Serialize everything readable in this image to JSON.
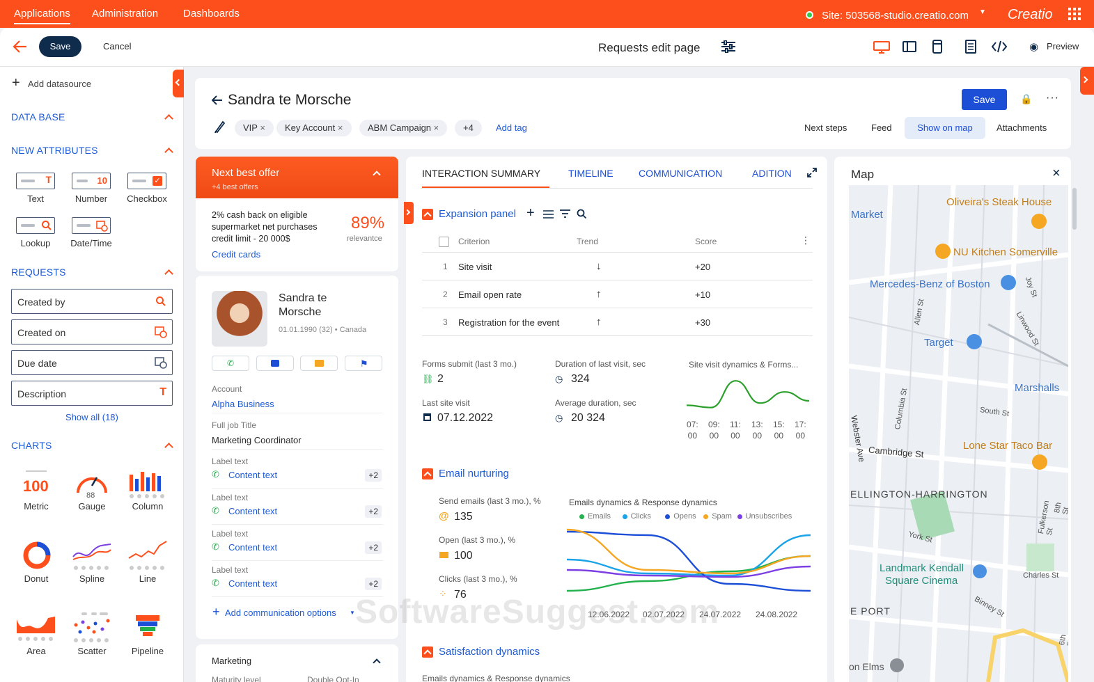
{
  "topnav": {
    "items": [
      "Applications",
      "Administration",
      "Dashboards"
    ],
    "site": "Site: 503568-studio.creatio.com",
    "logo": "Creatio"
  },
  "toolbar": {
    "save": "Save",
    "cancel": "Cancel",
    "page_title": "Requests edit page",
    "preview": "Preview"
  },
  "left": {
    "add_datasource": "Add datasource",
    "data_base": "DATA BASE",
    "new_attributes": "NEW ATTRIBUTES",
    "attrs": [
      "Text",
      "Number",
      "Checkbox",
      "Lookup",
      "Date/Time"
    ],
    "attr_number_glyph": "10",
    "requests": "REQUESTS",
    "fields": [
      "Created by",
      "Created on",
      "Due date",
      "Description"
    ],
    "show_all": "Show all (18)",
    "charts": "CHARTS",
    "chart_tiles": [
      "Metric",
      "Gauge",
      "Column",
      "Donut",
      "Spline",
      "Line",
      "Area",
      "Scatter",
      "Pipeline"
    ],
    "metric_value": "100",
    "gauge_value": "88"
  },
  "record": {
    "name": "Sandra te Morsche",
    "save": "Save",
    "tags": [
      "VIP",
      "Key Account",
      "ABM Campaign",
      "+4"
    ],
    "add_tag": "Add tag",
    "actions": [
      "Next steps",
      "Feed",
      "Show on map",
      "Attachments"
    ]
  },
  "offer": {
    "title": "Next best offer",
    "subtitle": "+4 best offers",
    "text": "2% cash back on eligible supermarket net purchases credit limit - 20 000$",
    "percent": "89%",
    "percent_label": "relevantce",
    "link": "Credit cards"
  },
  "contact": {
    "name_line1": "Sandra te",
    "name_line2": "Morsche",
    "meta": "01.01.1990 (32) • Canada",
    "account_label": "Account",
    "account_value": "Alpha Business",
    "job_label": "Full job Title",
    "job_value": "Marketing Coordinator",
    "rows": [
      {
        "label": "Label text",
        "value": "Content text",
        "badge": "+2"
      },
      {
        "label": "Label text",
        "value": "Content text",
        "badge": "+2"
      },
      {
        "label": "Label text",
        "value": "Content text",
        "badge": "+2"
      },
      {
        "label": "Label text",
        "value": "Content text",
        "badge": "+2"
      }
    ],
    "add_comm": "Add communication options",
    "marketing": "Marketing",
    "marketing_sub1": "Maturity level",
    "marketing_sub2": "Double Opt-In"
  },
  "tabs": [
    "INTERACTION SUMMARY",
    "TIMELINE",
    "COMMUNICATION",
    "ADITION"
  ],
  "expansion": {
    "title": "Expansion panel",
    "headers": [
      "Criterion",
      "Trend",
      "Score"
    ],
    "rows": [
      {
        "n": "1",
        "criterion": "Site visit",
        "trend": "↓",
        "score": "+20"
      },
      {
        "n": "2",
        "criterion": "Email open rate",
        "trend": "↑",
        "score": "+10"
      },
      {
        "n": "3",
        "criterion": "Registration for the event",
        "trend": "↑",
        "score": "+30"
      }
    ]
  },
  "metrics": {
    "forms_label": "Forms submit (last 3 mo.)",
    "forms_value": "2",
    "duration_label": "Duration of last visit, sec",
    "duration_value": "324",
    "last_visit_label": "Last site visit",
    "last_visit_value": "07.12.2022",
    "avg_label": "Average duration, sec",
    "avg_value": "20 324"
  },
  "site_chart": {
    "title": "Site visit dynamics & Forms...",
    "ticks_top": [
      "07:",
      "09:",
      "11:",
      "13:",
      "15:",
      "17:"
    ],
    "ticks_bottom": [
      "00",
      "00",
      "00",
      "00",
      "00",
      "00"
    ]
  },
  "email": {
    "title": "Email nurturing",
    "send_label": "Send emails (last 3 mo.), %",
    "send_value": "135",
    "open_label": "Open (last 3 mo.), %",
    "open_value": "100",
    "clicks_label": "Clicks (last 3 mo.), %",
    "clicks_value": "76",
    "chart_title": "Emails dynamics & Response dynamics"
  },
  "satisfaction": {
    "title": "Satisfaction dynamics",
    "sub": "Emails dynamics & Response dynamics"
  },
  "map": {
    "title": "Map",
    "labels": [
      "Oliveira's Steak House",
      "Market",
      "NU Kitchen Somerville",
      "Mercedes-Benz of Boston",
      "Target",
      "Marshalls",
      "South St",
      "Lone Star Taco Bar",
      "Cambridge St",
      "ELLINGTON-HARRINGTON",
      "York St",
      "Landmark Kendall",
      "Square Cinema",
      "Charles St",
      "Binney St",
      "E PORT",
      "on Elms",
      "Webster Ave",
      "Allen St",
      "Joy St",
      "Linwood St",
      "Columbia St",
      "Fulkerson St",
      "8th St",
      "6th St"
    ]
  },
  "watermark": "SoftwareSuggest.com",
  "chart_data": [
    {
      "type": "line",
      "title": "Site visit dynamics & Forms...",
      "categories": [
        "07:00",
        "09:00",
        "11:00",
        "13:00",
        "15:00",
        "17:00"
      ],
      "series": [
        {
          "values": [
            3,
            2,
            14,
            4,
            9,
            5
          ]
        }
      ],
      "colors": [
        "#2ca02c"
      ]
    },
    {
      "type": "line",
      "title": "Emails dynamics & Response dynamics",
      "categories": [
        "12.06.2022",
        "02.07.2022",
        "24.07.2022",
        "24.08.2022"
      ],
      "series": [
        {
          "name": "Emails",
          "values": [
            10,
            24,
            38,
            60
          ],
          "color": "#22b14c"
        },
        {
          "name": "Clicks",
          "values": [
            55,
            35,
            32,
            90
          ],
          "color": "#1aa3e8"
        },
        {
          "name": "Opens",
          "values": [
            95,
            90,
            20,
            10
          ],
          "color": "#1c4fd6"
        },
        {
          "name": "Spam",
          "values": [
            98,
            40,
            35,
            60
          ],
          "color": "#f5a623"
        },
        {
          "name": "Unsubscribes",
          "values": [
            40,
            32,
            30,
            45
          ],
          "color": "#7b3fe4"
        }
      ]
    }
  ]
}
